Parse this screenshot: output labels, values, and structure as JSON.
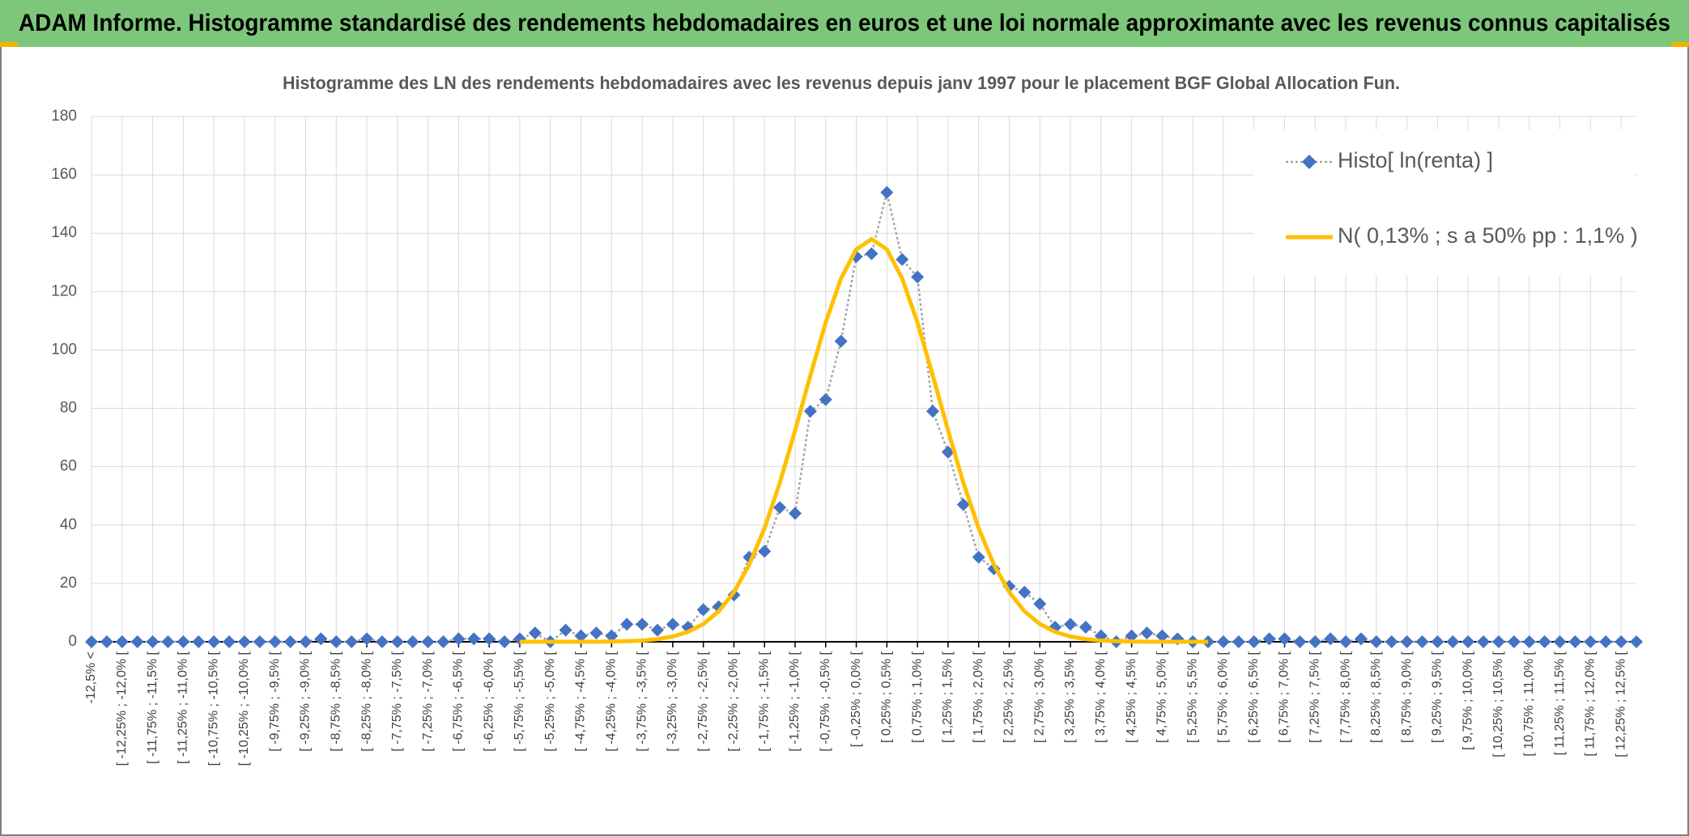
{
  "header": {
    "title": "ADAM Informe. Histogramme standardisé des rendements hebdomadaires en euros et une loi normale approximante avec les revenus connus capitalisés"
  },
  "chart_data": {
    "type": "line",
    "title": "Histogramme des LN des rendements hebdomadaires avec les revenus depuis janv 1997 pour le placement BGF Global Allocation Fun.",
    "categories": [
      "-12,5% <",
      null,
      "[ -12,25% ; -12,0% [",
      null,
      "[ -11,75% ; -11,5% [",
      null,
      "[ -11,25% ; -11,0% [",
      null,
      "[ -10,75% ; -10,5% [",
      null,
      "[ -10,25% ; -10,0% [",
      null,
      "[ -9,75% ; -9,5% [",
      null,
      "[ -9,25% ; -9,0% [",
      null,
      "[ -8,75% ; -8,5% [",
      null,
      "[ -8,25% ; -8,0% [",
      null,
      "[ -7,75% ; -7,5% [",
      null,
      "[ -7,25% ; -7,0% [",
      null,
      "[ -6,75% ; -6,5% [",
      null,
      "[ -6,25% ; -6,0% [",
      null,
      "[ -5,75% ; -5,5% [",
      null,
      "[ -5,25% ; -5,0% [",
      null,
      "[ -4,75% ; -4,5% [",
      null,
      "[ -4,25% ; -4,0% [",
      null,
      "[ -3,75% ; -3,5% [",
      null,
      "[ -3,25% ; -3,0% [",
      null,
      "[ -2,75% ; -2,5% [",
      null,
      "[ -2,25% ; -2,0% [",
      null,
      "[ -1,75% ; -1,5% [",
      null,
      "[ -1,25% ; -1,0% [",
      null,
      "[ -0,75% ; -0,5% [",
      null,
      "[ -0,25% ; 0,0% [",
      null,
      "[ 0,25% ; 0,5% [",
      null,
      "[ 0,75% ; 1,0% [",
      null,
      "[ 1,25% ; 1,5% [",
      null,
      "[ 1,75% ; 2,0% [",
      null,
      "[ 2,25% ; 2,5% [",
      null,
      "[ 2,75% ; 3,0% [",
      null,
      "[ 3,25% ; 3,5% [",
      null,
      "[ 3,75% ; 4,0% [",
      null,
      "[ 4,25% ; 4,5% [",
      null,
      "[ 4,75% ; 5,0% [",
      null,
      "[ 5,25% ; 5,5% [",
      null,
      "[ 5,75% ; 6,0% [",
      null,
      "[ 6,25% ; 6,5% [",
      null,
      "[ 6,75% ; 7,0% [",
      null,
      "[ 7,25% ; 7,5% [",
      null,
      "[ 7,75% ; 8,0% [",
      null,
      "[ 8,25% ; 8,5% [",
      null,
      "[ 8,75% ; 9,0% [",
      null,
      "[ 9,25% ; 9,5% [",
      null,
      "[ 9,75% ; 10,0% [",
      null,
      "[ 10,25% ; 10,5% [",
      null,
      "[ 10,75% ; 11,0% [",
      null,
      "[ 11,25% ; 11,5% [",
      null,
      "[ 11,75% ; 12,0% [",
      null,
      "[ 12,25% ; 12,5% [",
      null
    ],
    "series": [
      {
        "name": "Histo[ ln(renta) ]",
        "color": "#4472c4",
        "line_color": "#a5a5a5",
        "values": [
          0,
          0,
          0,
          0,
          0,
          0,
          0,
          0,
          0,
          0,
          0,
          0,
          0,
          0,
          0,
          1,
          0,
          0,
          1,
          0,
          0,
          0,
          0,
          0,
          1,
          1,
          1,
          0,
          1,
          3,
          0,
          4,
          2,
          3,
          2,
          6,
          6,
          4,
          6,
          5,
          11,
          12,
          16,
          29,
          31,
          46,
          44,
          79,
          83,
          103,
          132,
          133,
          154,
          131,
          125,
          79,
          65,
          47,
          29,
          25,
          19,
          17,
          13,
          5,
          6,
          5,
          2,
          0,
          2,
          3,
          2,
          1,
          0,
          0,
          0,
          0,
          0,
          1,
          1,
          0,
          0,
          1,
          0,
          1,
          0,
          0,
          0,
          0,
          0,
          0,
          0,
          0,
          0,
          0,
          0,
          0,
          0,
          0,
          0,
          0,
          0,
          0
        ]
      },
      {
        "name": "N( 0,13% ; s a 50% pp : 1,1% )",
        "color": "#ffc000",
        "values": [
          null,
          null,
          null,
          null,
          null,
          null,
          null,
          null,
          null,
          null,
          null,
          null,
          null,
          null,
          null,
          null,
          null,
          null,
          null,
          null,
          null,
          null,
          null,
          null,
          null,
          null,
          null,
          null,
          0,
          0,
          0,
          0,
          0,
          0,
          0.1,
          0.2,
          0.4,
          0.9,
          1.8,
          3.4,
          6.1,
          10.4,
          17.0,
          26.4,
          38.9,
          54.5,
          72.4,
          91.3,
          109.4,
          124.5,
          134.5,
          138,
          134.5,
          124.5,
          109.4,
          91.3,
          72.4,
          54.5,
          38.9,
          26.4,
          17.0,
          10.4,
          6.1,
          3.4,
          1.8,
          0.9,
          0.4,
          0.2,
          0.1,
          0,
          0,
          0,
          0,
          0,
          null,
          null,
          null,
          null,
          null,
          null,
          null,
          null,
          null,
          null,
          null,
          null,
          null,
          null,
          null,
          null,
          null,
          null,
          null,
          null,
          null,
          null,
          null,
          null,
          null,
          null,
          null,
          null
        ]
      }
    ],
    "ylim": [
      0,
      180
    ],
    "yticks": [
      0,
      20,
      40,
      60,
      80,
      100,
      120,
      140,
      160,
      180
    ],
    "grid": true
  }
}
